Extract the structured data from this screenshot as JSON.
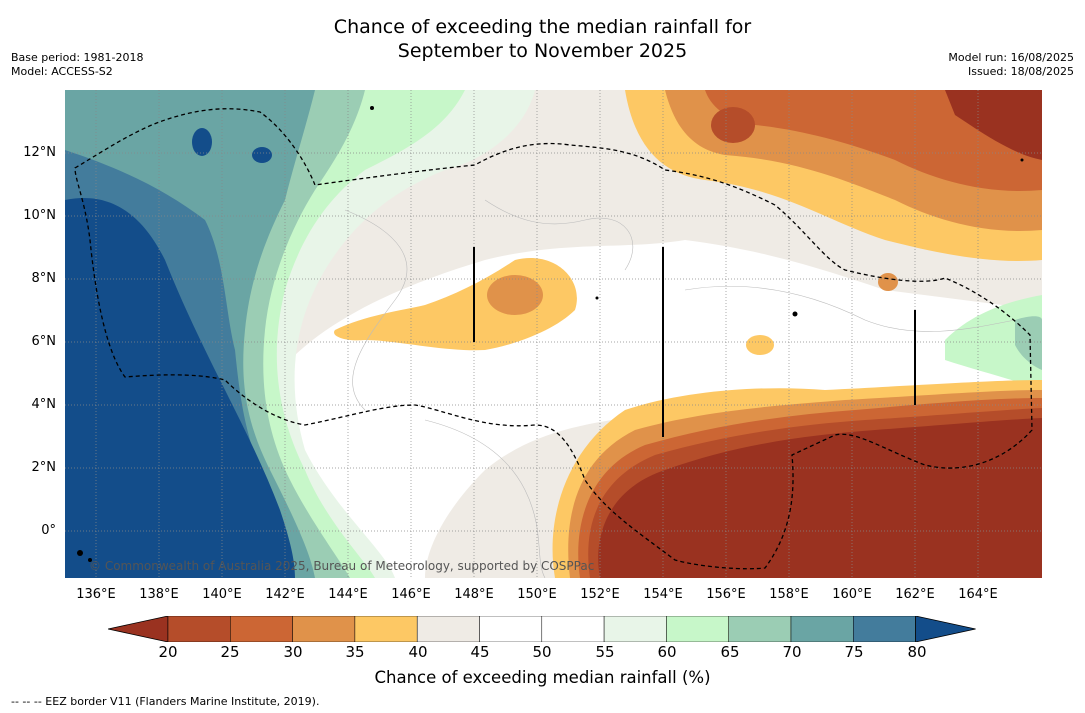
{
  "header": {
    "title_line1": "Chance of exceeding the median rainfall for",
    "title_line2": "September to November 2025",
    "base_period": "Base period: 1981-2018",
    "model": "Model: ACCESS-S2",
    "model_run": "Model run: 16/08/2025",
    "issued": "Issued: 18/08/2025"
  },
  "map": {
    "y_axis_labels": [
      "12°N",
      "10°N",
      "8°N",
      "6°N",
      "4°N",
      "2°N",
      "0°"
    ],
    "x_axis_labels": [
      "136°E",
      "138°E",
      "140°E",
      "142°E",
      "144°E",
      "146°E",
      "148°E",
      "150°E",
      "152°E",
      "154°E",
      "156°E",
      "158°E",
      "160°E",
      "162°E",
      "164°E"
    ],
    "copyright": "© Commonwealth of Australia 2025, Bureau of Meteorology, supported by COSPPac"
  },
  "colorbar": {
    "ticks": [
      "20",
      "25",
      "30",
      "35",
      "40",
      "45",
      "50",
      "55",
      "60",
      "65",
      "70",
      "75",
      "80"
    ],
    "colors": [
      "#9a3220",
      "#b54d2a",
      "#cc6634",
      "#e0924a",
      "#fdc864",
      "#efebe5",
      "#ffffff",
      "#ffffff",
      "#e8f5e8",
      "#c7f7c9",
      "#9bcdb4",
      "#6aa5a4",
      "#437c9c",
      "#134d8a"
    ],
    "title": "Chance of exceeding median rainfall (%)"
  },
  "footnote": "--  --  -- EEZ border V11 (Flanders Marine Institute, 2019)."
}
